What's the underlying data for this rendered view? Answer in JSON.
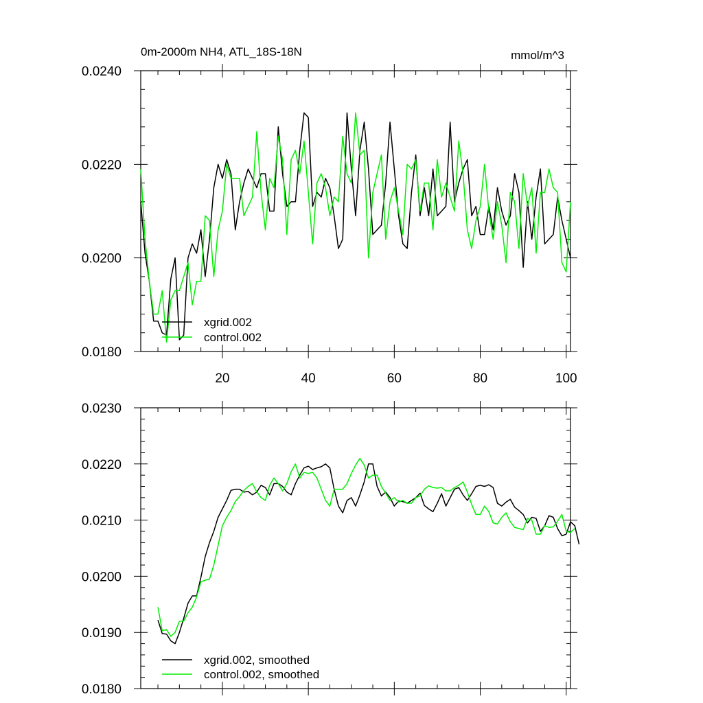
{
  "colors": {
    "xgrid": "#000000",
    "control": "#00ee00",
    "background": "#ffffff"
  },
  "chart_data": [
    {
      "type": "line",
      "title": "0m-2000m NH4, ATL_18S-18N",
      "units": "mmol/m^3",
      "xlim": [
        1,
        101
      ],
      "ylim": [
        0.018,
        0.024
      ],
      "xticks": [
        20,
        40,
        60,
        80,
        100
      ],
      "xtick_labels": [
        "20",
        "40",
        "60",
        "80",
        "100"
      ],
      "yticks": [
        0.018,
        0.02,
        0.022,
        0.024
      ],
      "ytick_labels": [
        "0.0180",
        "0.0200",
        "0.0220",
        "0.0240"
      ],
      "legend_position": "bottom-left",
      "series": [
        {
          "name": "xgrid.002",
          "color": "#000000",
          "x_start": 1,
          "values": [
            0.0212,
            0.0201,
            0.0195,
            0.01865,
            0.01865,
            0.0184,
            0.01835,
            0.01955,
            0.02,
            0.01825,
            0.01835,
            0.02,
            0.0203,
            0.0201,
            0.0206,
            0.0196,
            0.0204,
            0.0215,
            0.022,
            0.0217,
            0.0221,
            0.0218,
            0.0206,
            0.0212,
            0.0216,
            0.0219,
            0.0217,
            0.0215,
            0.0218,
            0.0218,
            0.021,
            0.021,
            0.0228,
            0.0218,
            0.0211,
            0.0212,
            0.0212,
            0.0223,
            0.0231,
            0.023,
            0.0211,
            0.0214,
            0.0213,
            0.0217,
            0.0215,
            0.0209,
            0.0202,
            0.0204,
            0.0231,
            0.0219,
            0.0209,
            0.0223,
            0.0229,
            0.0219,
            0.0205,
            0.0206,
            0.0207,
            0.0216,
            0.0229,
            0.0219,
            0.0209,
            0.0203,
            0.0202,
            0.0214,
            0.0222,
            0.0209,
            0.0215,
            0.0209,
            0.0219,
            0.0209,
            0.021,
            0.0211,
            0.0229,
            0.0212,
            0.0216,
            0.0219,
            0.0221,
            0.0209,
            0.0211,
            0.0205,
            0.0205,
            0.0211,
            0.0206,
            0.0215,
            0.021,
            0.0207,
            0.0209,
            0.0218,
            0.0214,
            0.0198,
            0.0212,
            0.0204,
            0.0213,
            0.0219,
            0.0203,
            0.0204,
            0.0205,
            0.0213,
            0.0208,
            0.0204,
            0.02
          ]
        },
        {
          "name": "control.002",
          "color": "#00ee00",
          "x_start": 1,
          "values": [
            0.0219,
            0.0204,
            0.0195,
            0.0188,
            0.0188,
            0.0193,
            0.0182,
            0.0191,
            0.0193,
            0.0193,
            0.0196,
            0.0199,
            0.019,
            0.0195,
            0.0195,
            0.0209,
            0.0208,
            0.0196,
            0.0206,
            0.021,
            0.022,
            0.0217,
            0.0217,
            0.0217,
            0.0209,
            0.0211,
            0.0213,
            0.0227,
            0.0214,
            0.0206,
            0.0217,
            0.0215,
            0.0226,
            0.0221,
            0.0205,
            0.0221,
            0.0223,
            0.0218,
            0.0225,
            0.0214,
            0.0203,
            0.0216,
            0.0218,
            0.0215,
            0.0209,
            0.0213,
            0.0212,
            0.0226,
            0.0218,
            0.0216,
            0.0231,
            0.0222,
            0.0223,
            0.02,
            0.0214,
            0.0218,
            0.0222,
            0.0204,
            0.0212,
            0.0215,
            0.021,
            0.0205,
            0.022,
            0.0219,
            0.0221,
            0.021,
            0.0216,
            0.0216,
            0.0206,
            0.0221,
            0.0213,
            0.0216,
            0.0213,
            0.021,
            0.0225,
            0.0218,
            0.0206,
            0.0202,
            0.0208,
            0.0211,
            0.022,
            0.021,
            0.0204,
            0.0212,
            0.0207,
            0.0199,
            0.0214,
            0.0212,
            0.0202,
            0.0218,
            0.0211,
            0.0215,
            0.0201,
            0.0214,
            0.0214,
            0.0219,
            0.0215,
            0.0214,
            0.0199,
            0.0197,
            0.0212
          ]
        }
      ],
      "legend": [
        "xgrid.002",
        "control.002"
      ]
    },
    {
      "type": "line",
      "title": "",
      "xlim": [
        1,
        101
      ],
      "ylim": [
        0.018,
        0.023
      ],
      "xticks": [
        20,
        40,
        60,
        80,
        100
      ],
      "xtick_labels": [
        "",
        "",
        "",
        "",
        ""
      ],
      "yticks": [
        0.018,
        0.019,
        0.02,
        0.021,
        0.022,
        0.023
      ],
      "ytick_labels": [
        "0.0180",
        "0.0190",
        "0.0200",
        "0.0210",
        "0.0220",
        "0.0230"
      ],
      "legend_position": "bottom-left",
      "series": [
        {
          "name": "xgrid.002, smoothed",
          "color": "#000000",
          "x_start": 5,
          "values": [
            0.01922,
            0.01898,
            0.01897,
            0.01885,
            0.0188,
            0.019,
            0.01925,
            0.01952,
            0.01965,
            0.01965,
            0.01998,
            0.02035,
            0.0206,
            0.0208,
            0.02105,
            0.0212,
            0.02135,
            0.02153,
            0.02155,
            0.02155,
            0.0215,
            0.02151,
            0.02145,
            0.0215,
            0.02162,
            0.02158,
            0.02145,
            0.02165,
            0.02165,
            0.0216,
            0.0215,
            0.02145,
            0.02165,
            0.0218,
            0.02193,
            0.02196,
            0.0219,
            0.02193,
            0.02195,
            0.022,
            0.02193,
            0.02155,
            0.02125,
            0.02113,
            0.02135,
            0.0214,
            0.02125,
            0.02145,
            0.02168,
            0.022,
            0.022,
            0.0216,
            0.02143,
            0.0215,
            0.0214,
            0.02125,
            0.02134,
            0.02133,
            0.0213,
            0.02135,
            0.0214,
            0.02148,
            0.02126,
            0.0212,
            0.02115,
            0.0213,
            0.02147,
            0.02125,
            0.0214,
            0.02155,
            0.02158,
            0.02145,
            0.02135,
            0.02147,
            0.0216,
            0.02162,
            0.0216,
            0.02163,
            0.02158,
            0.0213,
            0.02125,
            0.02132,
            0.02137,
            0.02123,
            0.02117,
            0.0211,
            0.02095,
            0.02105,
            0.02103,
            0.0208,
            0.0209,
            0.02108,
            0.02105,
            0.02085,
            0.02072,
            0.02075,
            0.02097,
            0.0209,
            0.02057
          ]
        },
        {
          "name": "control.002, smoothed",
          "color": "#00ee00",
          "x_start": 5,
          "values": [
            0.01945,
            0.01903,
            0.01905,
            0.01893,
            0.019,
            0.0192,
            0.0192,
            0.01935,
            0.01945,
            0.01963,
            0.0199,
            0.01993,
            0.01995,
            0.0202,
            0.02055,
            0.0209,
            0.02105,
            0.02117,
            0.02133,
            0.02142,
            0.02153,
            0.0216,
            0.02165,
            0.0215,
            0.0214,
            0.02135,
            0.02162,
            0.02175,
            0.02165,
            0.02152,
            0.02165,
            0.02186,
            0.022,
            0.02175,
            0.02185,
            0.02183,
            0.02185,
            0.02175,
            0.02155,
            0.02135,
            0.02125,
            0.02155,
            0.02155,
            0.02155,
            0.02165,
            0.02183,
            0.02198,
            0.0221,
            0.02198,
            0.02175,
            0.0218,
            0.0218,
            0.0216,
            0.02148,
            0.02135,
            0.0214,
            0.02132,
            0.02135,
            0.0213,
            0.0213,
            0.0214,
            0.02143,
            0.02155,
            0.02161,
            0.02158,
            0.02157,
            0.02158,
            0.02152,
            0.02152,
            0.02158,
            0.02162,
            0.02168,
            0.0215,
            0.02128,
            0.0211,
            0.0211,
            0.02125,
            0.02115,
            0.02095,
            0.02093,
            0.02105,
            0.02113,
            0.02097,
            0.02087,
            0.02085,
            0.02083,
            0.02103,
            0.021,
            0.02075,
            0.02075,
            0.0209,
            0.02087,
            0.02088,
            0.02098,
            0.0211,
            0.0208,
            0.02078,
            0.02085
          ]
        }
      ],
      "legend": [
        "xgrid.002, smoothed",
        "control.002, smoothed"
      ]
    }
  ]
}
